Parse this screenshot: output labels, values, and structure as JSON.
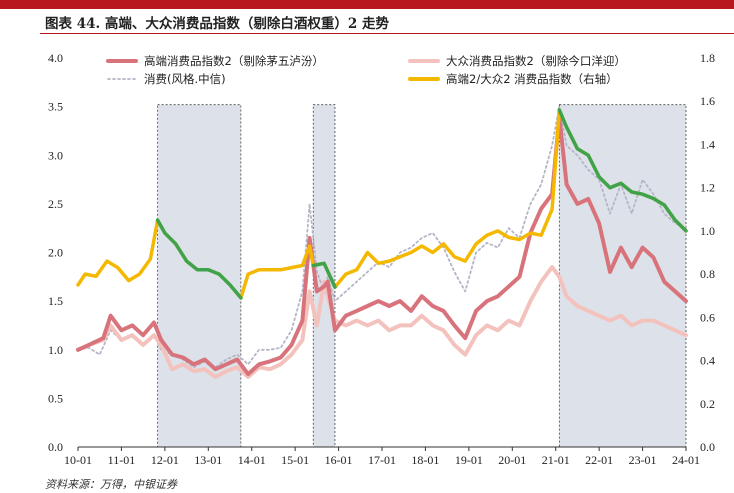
{
  "title": "图表 44. 高端、大众消费品指数（剔除白酒权重）2 走势",
  "source": "资料来源：万得，中银证券",
  "colors": {
    "title_bar": "#b8171e",
    "high_end": "#d8737b",
    "mass": "#f4c2bd",
    "consumer": "#b4b6c6",
    "ratio": "#f5b800",
    "ratio_falling": "#3fa34d",
    "shade": "#dde2ea"
  },
  "chart_data": {
    "type": "line",
    "title": "图表 44. 高端、大众消费品指数（剔除白酒权重）2 走势",
    "x_ticks": [
      "10-01",
      "11-01",
      "12-01",
      "13-01",
      "14-01",
      "15-01",
      "16-01",
      "17-01",
      "18-01",
      "19-01",
      "20-01",
      "21-01",
      "22-01",
      "23-01",
      "24-01"
    ],
    "y_left": {
      "ticks": [
        "0.0",
        "0.5",
        "1.0",
        "1.5",
        "2.0",
        "2.5",
        "3.0",
        "3.5",
        "4.0"
      ],
      "range": [
        0,
        4
      ]
    },
    "y_right": {
      "ticks": [
        "0.0",
        "0.2",
        "0.4",
        "0.6",
        "0.8",
        "1.0",
        "1.2",
        "1.4",
        "1.6",
        "1.8"
      ],
      "range": [
        0,
        1.8
      ]
    },
    "shaded_periods": [
      {
        "start": "2011-11",
        "end": "2013-10"
      },
      {
        "start": "2015-06",
        "end": "2015-12"
      },
      {
        "start": "2021-02",
        "end": "2024-01"
      }
    ],
    "legend": [
      {
        "label": "高端消费品指数2（剔除茅五泸汾）",
        "key": "high_end",
        "style": "solid-thick"
      },
      {
        "label": "大众消费品指数2（剔除今口洋迎）",
        "key": "mass",
        "style": "solid-thick"
      },
      {
        "label": "消费(风格.中信)",
        "key": "consumer",
        "style": "dotted"
      },
      {
        "label": "高端2/大众2 消费品指数（右轴）",
        "key": "ratio",
        "style": "solid-thick"
      }
    ],
    "series": [
      {
        "name": "高端消费品指数2（剔除茅五泸汾）",
        "axis": "left",
        "points": [
          [
            "2010-01",
            1.0
          ],
          [
            "2010-04",
            1.05
          ],
          [
            "2010-08",
            1.12
          ],
          [
            "2010-10",
            1.35
          ],
          [
            "2011-01",
            1.2
          ],
          [
            "2011-04",
            1.25
          ],
          [
            "2011-07",
            1.15
          ],
          [
            "2011-10",
            1.28
          ],
          [
            "2011-12",
            1.1
          ],
          [
            "2012-03",
            0.95
          ],
          [
            "2012-06",
            0.92
          ],
          [
            "2012-09",
            0.85
          ],
          [
            "2012-12",
            0.9
          ],
          [
            "2013-03",
            0.8
          ],
          [
            "2013-06",
            0.85
          ],
          [
            "2013-09",
            0.9
          ],
          [
            "2013-12",
            0.75
          ],
          [
            "2014-03",
            0.85
          ],
          [
            "2014-06",
            0.88
          ],
          [
            "2014-09",
            0.92
          ],
          [
            "2014-12",
            1.05
          ],
          [
            "2015-03",
            1.3
          ],
          [
            "2015-05",
            2.15
          ],
          [
            "2015-07",
            1.6
          ],
          [
            "2015-09",
            1.65
          ],
          [
            "2015-10",
            1.7
          ],
          [
            "2015-12",
            1.2
          ],
          [
            "2016-03",
            1.35
          ],
          [
            "2016-06",
            1.4
          ],
          [
            "2016-09",
            1.45
          ],
          [
            "2016-12",
            1.5
          ],
          [
            "2017-03",
            1.45
          ],
          [
            "2017-06",
            1.5
          ],
          [
            "2017-09",
            1.4
          ],
          [
            "2017-12",
            1.55
          ],
          [
            "2018-03",
            1.45
          ],
          [
            "2018-06",
            1.4
          ],
          [
            "2018-09",
            1.25
          ],
          [
            "2018-12",
            1.12
          ],
          [
            "2019-03",
            1.4
          ],
          [
            "2019-06",
            1.5
          ],
          [
            "2019-09",
            1.55
          ],
          [
            "2019-12",
            1.65
          ],
          [
            "2020-03",
            1.75
          ],
          [
            "2020-06",
            2.2
          ],
          [
            "2020-09",
            2.45
          ],
          [
            "2020-12",
            2.6
          ],
          [
            "2021-02",
            3.4
          ],
          [
            "2021-04",
            2.7
          ],
          [
            "2021-07",
            2.5
          ],
          [
            "2021-10",
            2.55
          ],
          [
            "2022-01",
            2.3
          ],
          [
            "2022-04",
            1.8
          ],
          [
            "2022-07",
            2.05
          ],
          [
            "2022-10",
            1.85
          ],
          [
            "2023-01",
            2.05
          ],
          [
            "2023-04",
            1.95
          ],
          [
            "2023-07",
            1.7
          ],
          [
            "2023-10",
            1.6
          ],
          [
            "2024-01",
            1.5
          ]
        ]
      },
      {
        "name": "大众消费品指数2（剔除今口洋迎）",
        "axis": "left",
        "points": [
          [
            "2010-01",
            1.0
          ],
          [
            "2010-04",
            1.05
          ],
          [
            "2010-08",
            1.1
          ],
          [
            "2010-10",
            1.25
          ],
          [
            "2011-01",
            1.1
          ],
          [
            "2011-04",
            1.15
          ],
          [
            "2011-07",
            1.05
          ],
          [
            "2011-10",
            1.15
          ],
          [
            "2011-12",
            1.05
          ],
          [
            "2012-03",
            0.8
          ],
          [
            "2012-06",
            0.85
          ],
          [
            "2012-09",
            0.78
          ],
          [
            "2012-12",
            0.8
          ],
          [
            "2013-03",
            0.72
          ],
          [
            "2013-06",
            0.78
          ],
          [
            "2013-09",
            0.82
          ],
          [
            "2013-12",
            0.72
          ],
          [
            "2014-03",
            0.82
          ],
          [
            "2014-06",
            0.8
          ],
          [
            "2014-09",
            0.85
          ],
          [
            "2014-12",
            0.95
          ],
          [
            "2015-03",
            1.1
          ],
          [
            "2015-05",
            1.6
          ],
          [
            "2015-07",
            1.25
          ],
          [
            "2015-09",
            1.7
          ],
          [
            "2015-10",
            1.55
          ],
          [
            "2015-12",
            1.3
          ],
          [
            "2016-03",
            1.25
          ],
          [
            "2016-06",
            1.3
          ],
          [
            "2016-09",
            1.25
          ],
          [
            "2016-12",
            1.3
          ],
          [
            "2017-03",
            1.2
          ],
          [
            "2017-06",
            1.25
          ],
          [
            "2017-09",
            1.25
          ],
          [
            "2017-12",
            1.35
          ],
          [
            "2018-03",
            1.25
          ],
          [
            "2018-06",
            1.2
          ],
          [
            "2018-09",
            1.05
          ],
          [
            "2018-12",
            0.95
          ],
          [
            "2019-03",
            1.15
          ],
          [
            "2019-06",
            1.25
          ],
          [
            "2019-09",
            1.2
          ],
          [
            "2019-12",
            1.3
          ],
          [
            "2020-03",
            1.25
          ],
          [
            "2020-06",
            1.5
          ],
          [
            "2020-09",
            1.7
          ],
          [
            "2020-12",
            1.85
          ],
          [
            "2021-02",
            1.75
          ],
          [
            "2021-04",
            1.55
          ],
          [
            "2021-07",
            1.45
          ],
          [
            "2021-10",
            1.4
          ],
          [
            "2022-01",
            1.35
          ],
          [
            "2022-04",
            1.3
          ],
          [
            "2022-07",
            1.35
          ],
          [
            "2022-10",
            1.25
          ],
          [
            "2023-01",
            1.3
          ],
          [
            "2023-04",
            1.3
          ],
          [
            "2023-07",
            1.25
          ],
          [
            "2023-10",
            1.2
          ],
          [
            "2024-01",
            1.15
          ]
        ]
      },
      {
        "name": "消费(风格.中信)",
        "axis": "left",
        "points": [
          [
            "2010-01",
            1.0
          ],
          [
            "2010-04",
            1.02
          ],
          [
            "2010-07",
            0.95
          ],
          [
            "2010-10",
            1.2
          ],
          [
            "2011-01",
            1.1
          ],
          [
            "2011-04",
            1.15
          ],
          [
            "2011-07",
            1.05
          ],
          [
            "2011-10",
            1.15
          ],
          [
            "2011-12",
            1.0
          ],
          [
            "2012-03",
            0.95
          ],
          [
            "2012-06",
            0.9
          ],
          [
            "2012-09",
            0.82
          ],
          [
            "2012-12",
            0.88
          ],
          [
            "2013-03",
            0.82
          ],
          [
            "2013-06",
            0.9
          ],
          [
            "2013-09",
            0.95
          ],
          [
            "2013-12",
            0.85
          ],
          [
            "2014-03",
            1.0
          ],
          [
            "2014-06",
            1.0
          ],
          [
            "2014-09",
            1.02
          ],
          [
            "2014-12",
            1.2
          ],
          [
            "2015-03",
            1.6
          ],
          [
            "2015-05",
            2.5
          ],
          [
            "2015-07",
            1.8
          ],
          [
            "2015-09",
            1.6
          ],
          [
            "2015-10",
            1.75
          ],
          [
            "2015-12",
            1.5
          ],
          [
            "2016-03",
            1.6
          ],
          [
            "2016-06",
            1.7
          ],
          [
            "2016-09",
            1.8
          ],
          [
            "2016-12",
            1.9
          ],
          [
            "2017-03",
            1.85
          ],
          [
            "2017-06",
            2.0
          ],
          [
            "2017-09",
            2.05
          ],
          [
            "2017-12",
            2.15
          ],
          [
            "2018-03",
            2.2
          ],
          [
            "2018-06",
            2.05
          ],
          [
            "2018-09",
            1.8
          ],
          [
            "2018-12",
            1.6
          ],
          [
            "2019-03",
            2.0
          ],
          [
            "2019-06",
            2.1
          ],
          [
            "2019-09",
            2.05
          ],
          [
            "2019-12",
            2.25
          ],
          [
            "2020-03",
            2.15
          ],
          [
            "2020-06",
            2.5
          ],
          [
            "2020-09",
            2.7
          ],
          [
            "2020-12",
            3.1
          ],
          [
            "2021-02",
            3.5
          ],
          [
            "2021-04",
            3.1
          ],
          [
            "2021-07",
            3.0
          ],
          [
            "2021-10",
            2.85
          ],
          [
            "2022-01",
            2.75
          ],
          [
            "2022-04",
            2.4
          ],
          [
            "2022-07",
            2.7
          ],
          [
            "2022-10",
            2.4
          ],
          [
            "2023-01",
            2.75
          ],
          [
            "2023-04",
            2.6
          ],
          [
            "2023-07",
            2.4
          ],
          [
            "2023-10",
            2.3
          ],
          [
            "2024-01",
            2.25
          ]
        ]
      },
      {
        "name": "高端2/大众2 消费品指数（右轴）",
        "axis": "right",
        "points": [
          [
            "2010-01",
            0.75
          ],
          [
            "2010-03",
            0.8
          ],
          [
            "2010-06",
            0.79
          ],
          [
            "2010-09",
            0.86
          ],
          [
            "2010-12",
            0.83
          ],
          [
            "2011-03",
            0.77
          ],
          [
            "2011-06",
            0.8
          ],
          [
            "2011-09",
            0.87
          ],
          [
            "2011-11",
            1.05
          ],
          [
            "2012-01",
            0.99
          ],
          [
            "2012-04",
            0.94
          ],
          [
            "2012-07",
            0.86
          ],
          [
            "2012-10",
            0.82
          ],
          [
            "2013-01",
            0.82
          ],
          [
            "2013-04",
            0.8
          ],
          [
            "2013-07",
            0.75
          ],
          [
            "2013-10",
            0.69
          ],
          [
            "2013-12",
            0.8
          ],
          [
            "2014-03",
            0.82
          ],
          [
            "2014-06",
            0.82
          ],
          [
            "2014-09",
            0.82
          ],
          [
            "2014-12",
            0.83
          ],
          [
            "2015-03",
            0.84
          ],
          [
            "2015-05",
            0.93
          ],
          [
            "2015-06",
            0.84
          ],
          [
            "2015-09",
            0.85
          ],
          [
            "2015-12",
            0.74
          ],
          [
            "2016-03",
            0.8
          ],
          [
            "2016-06",
            0.82
          ],
          [
            "2016-09",
            0.9
          ],
          [
            "2016-12",
            0.85
          ],
          [
            "2017-03",
            0.86
          ],
          [
            "2017-06",
            0.88
          ],
          [
            "2017-09",
            0.9
          ],
          [
            "2017-12",
            0.93
          ],
          [
            "2018-03",
            0.9
          ],
          [
            "2018-06",
            0.94
          ],
          [
            "2018-09",
            0.88
          ],
          [
            "2018-12",
            0.86
          ],
          [
            "2019-03",
            0.94
          ],
          [
            "2019-06",
            0.98
          ],
          [
            "2019-09",
            1.0
          ],
          [
            "2019-12",
            0.97
          ],
          [
            "2020-03",
            0.96
          ],
          [
            "2020-06",
            0.99
          ],
          [
            "2020-09",
            0.98
          ],
          [
            "2020-12",
            1.1
          ],
          [
            "2021-02",
            1.56
          ],
          [
            "2021-04",
            1.48
          ],
          [
            "2021-07",
            1.38
          ],
          [
            "2021-10",
            1.35
          ],
          [
            "2022-01",
            1.25
          ],
          [
            "2022-04",
            1.2
          ],
          [
            "2022-07",
            1.22
          ],
          [
            "2022-10",
            1.18
          ],
          [
            "2023-01",
            1.17
          ],
          [
            "2023-04",
            1.15
          ],
          [
            "2023-07",
            1.12
          ],
          [
            "2023-10",
            1.05
          ],
          [
            "2024-01",
            1.0
          ]
        ]
      }
    ]
  }
}
